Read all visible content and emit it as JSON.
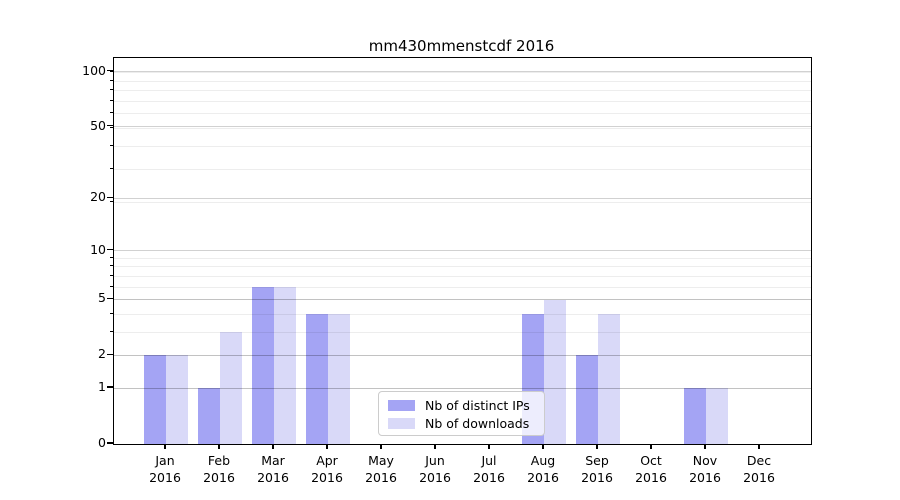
{
  "chart_data": {
    "type": "bar",
    "title": "mm430mmenstcdf 2016",
    "categories": [
      "Jan",
      "Feb",
      "Mar",
      "Apr",
      "May",
      "Jun",
      "Jul",
      "Aug",
      "Sep",
      "Oct",
      "Nov",
      "Dec"
    ],
    "year": "2016",
    "series": [
      {
        "name": "Nb of distinct IPs",
        "color": "#a4a4f4",
        "values": [
          2,
          1,
          6,
          4,
          0,
          0,
          0,
          4,
          2,
          0,
          1,
          0
        ]
      },
      {
        "name": "Nb of downloads",
        "color": "#d9d9f8",
        "values": [
          2,
          3,
          6,
          4,
          0,
          0,
          0,
          5,
          4,
          0,
          1,
          0
        ]
      }
    ],
    "y_axis": {
      "scale": "log10(1+y)",
      "tick_values": [
        100,
        50,
        20,
        10,
        5,
        2,
        1,
        0
      ],
      "tick_labels": [
        "100",
        "50",
        "20",
        "10",
        "5",
        "2",
        "1",
        "0"
      ],
      "minor_grid_shifted_values": [
        2,
        3,
        4,
        5,
        6,
        7,
        8,
        9,
        10,
        20,
        30,
        40,
        50,
        60,
        70,
        80,
        90,
        100
      ]
    },
    "grid": true,
    "legend_position": "bottom-center-inside"
  }
}
